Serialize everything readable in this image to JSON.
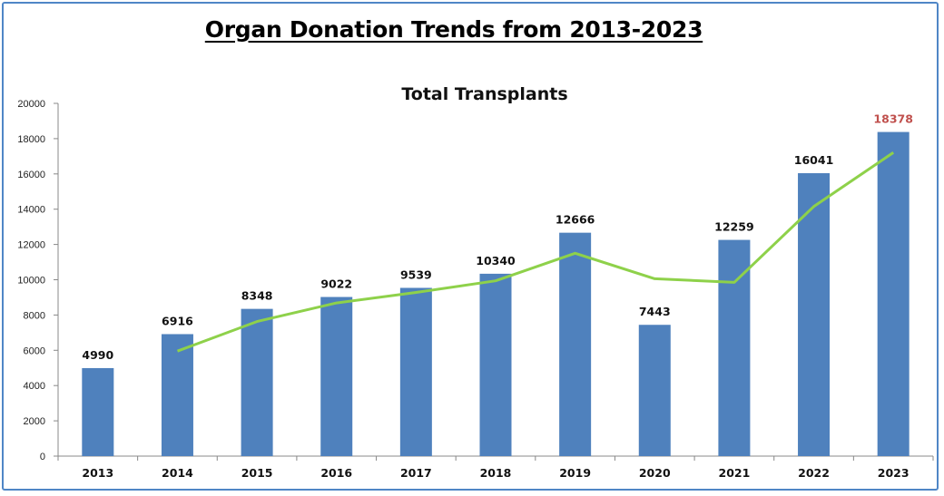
{
  "page": {
    "title": "Organ Donation Trends from 2013-2023"
  },
  "colors": {
    "bar": "#4f81bd",
    "trend_line": "#8ed14a",
    "border": "#4f86c6",
    "highlight_label": "#c0504d",
    "axis": "#888888"
  },
  "chart_data": {
    "type": "bar",
    "title": "Total Transplants",
    "xlabel": "",
    "ylabel": "",
    "ylim": [
      0,
      20000
    ],
    "yticks": [
      0,
      2000,
      4000,
      6000,
      8000,
      10000,
      12000,
      14000,
      16000,
      18000,
      20000
    ],
    "categories": [
      "2013",
      "2014",
      "2015",
      "2016",
      "2017",
      "2018",
      "2019",
      "2020",
      "2021",
      "2022",
      "2023"
    ],
    "values": [
      4990,
      6916,
      8348,
      9022,
      9539,
      10340,
      12666,
      7443,
      12259,
      16041,
      18378
    ],
    "highlight_index": 10,
    "trend_line": {
      "type": "line",
      "x": [
        "2014",
        "2015",
        "2016",
        "2017",
        "2018",
        "2019",
        "2020",
        "2021",
        "2022",
        "2023"
      ],
      "values": [
        5953,
        7632,
        8685,
        9281,
        9940,
        11503,
        10055,
        9851,
        14150,
        17210
      ]
    },
    "grid": false,
    "legend": "none"
  }
}
